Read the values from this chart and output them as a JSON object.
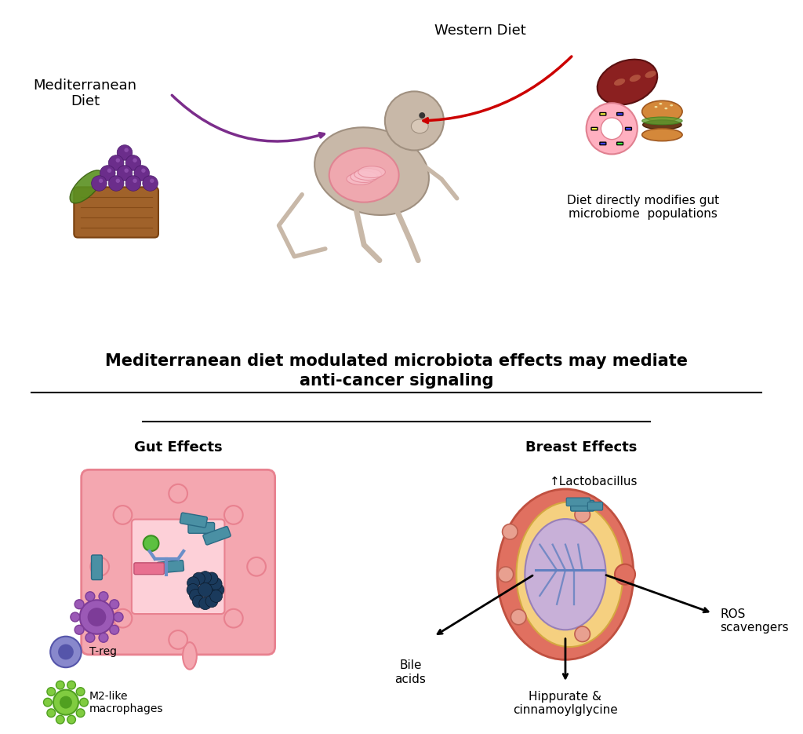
{
  "title": "Mediterranean diet modulated microbiota effects may mediate\nanti-cancer signaling",
  "western_diet_label": "Western Diet",
  "med_diet_label": "Mediterranean\nDiet",
  "gut_modifies_label": "Diet directly modifies gut\nmicrobiome  populations",
  "gut_effects_label": "Gut Effects",
  "breast_effects_label": "Breast Effects",
  "lactobacillus_label": "↑Lactobacillus",
  "bile_acids_label": "Bile\nacids",
  "ros_label": "ROS\nscavengers",
  "hippurate_label": "Hippurate &\ncinnamoylglycine",
  "treg_label": "T-reg",
  "m2_label": "M2-like\nmacrophages",
  "background_color": "#ffffff",
  "arrow_red_color": "#cc0000",
  "arrow_purple_color": "#7B2D8B",
  "arrow_black_color": "#000000",
  "gut_fill_color": "#F4A7B0",
  "gut_outer_color": "#E8818F",
  "breast_outer_color": "#E8818F",
  "breast_fill_color": "#F9C9B0",
  "bacteria_blue_color": "#4A90A4",
  "bacteria_dark_color": "#1A3A5C",
  "treg_color": "#8080CC",
  "m2_color": "#80CC40",
  "purple_bacteria_color": "#9B59B6",
  "title_fontsize": 15,
  "label_fontsize": 13,
  "small_fontsize": 11
}
